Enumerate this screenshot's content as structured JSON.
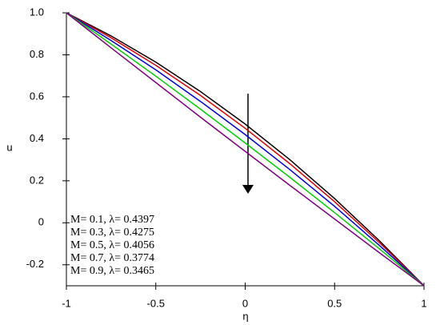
{
  "chart_data": {
    "type": "line",
    "x_label": "η",
    "y_label": "u",
    "x": [
      -1,
      -0.75,
      -0.5,
      -0.25,
      0,
      0.25,
      0.5,
      0.75,
      1
    ],
    "series": [
      {
        "name": "M= 0.1, λ= 0.4397",
        "color": "#000000",
        "values": [
          1,
          0.89,
          0.765,
          0.625,
          0.47,
          0.3,
          0.115,
          -0.085,
          -0.3
        ]
      },
      {
        "name": "M= 0.3, λ= 0.4275",
        "color": "#e00000",
        "values": [
          1,
          0.881,
          0.75,
          0.606,
          0.45,
          0.281,
          0.1,
          -0.094,
          -0.3
        ]
      },
      {
        "name": "M= 0.5, λ= 0.4056",
        "color": "#0000e0",
        "values": [
          1,
          0.868,
          0.728,
          0.578,
          0.42,
          0.253,
          0.078,
          -0.107,
          -0.3
        ]
      },
      {
        "name": "M= 0.7, λ= 0.3774",
        "color": "#00d000",
        "values": [
          1,
          0.851,
          0.698,
          0.541,
          0.38,
          0.216,
          0.048,
          -0.124,
          -0.3
        ]
      },
      {
        "name": "M= 0.9, λ= 0.3465",
        "color": "#800080",
        "values": [
          1,
          0.833,
          0.668,
          0.503,
          0.34,
          0.178,
          0.018,
          -0.142,
          -0.3
        ]
      }
    ],
    "xlim": [
      -1,
      1
    ],
    "ylim": [
      -0.3,
      1.0
    ],
    "xticks": [
      -1,
      -0.5,
      0,
      0.5,
      1
    ],
    "yticks": [
      {
        "value": 1,
        "label": "1.0"
      },
      0.8,
      0.6,
      0.4,
      0.2,
      0,
      -0.2
    ]
  }
}
